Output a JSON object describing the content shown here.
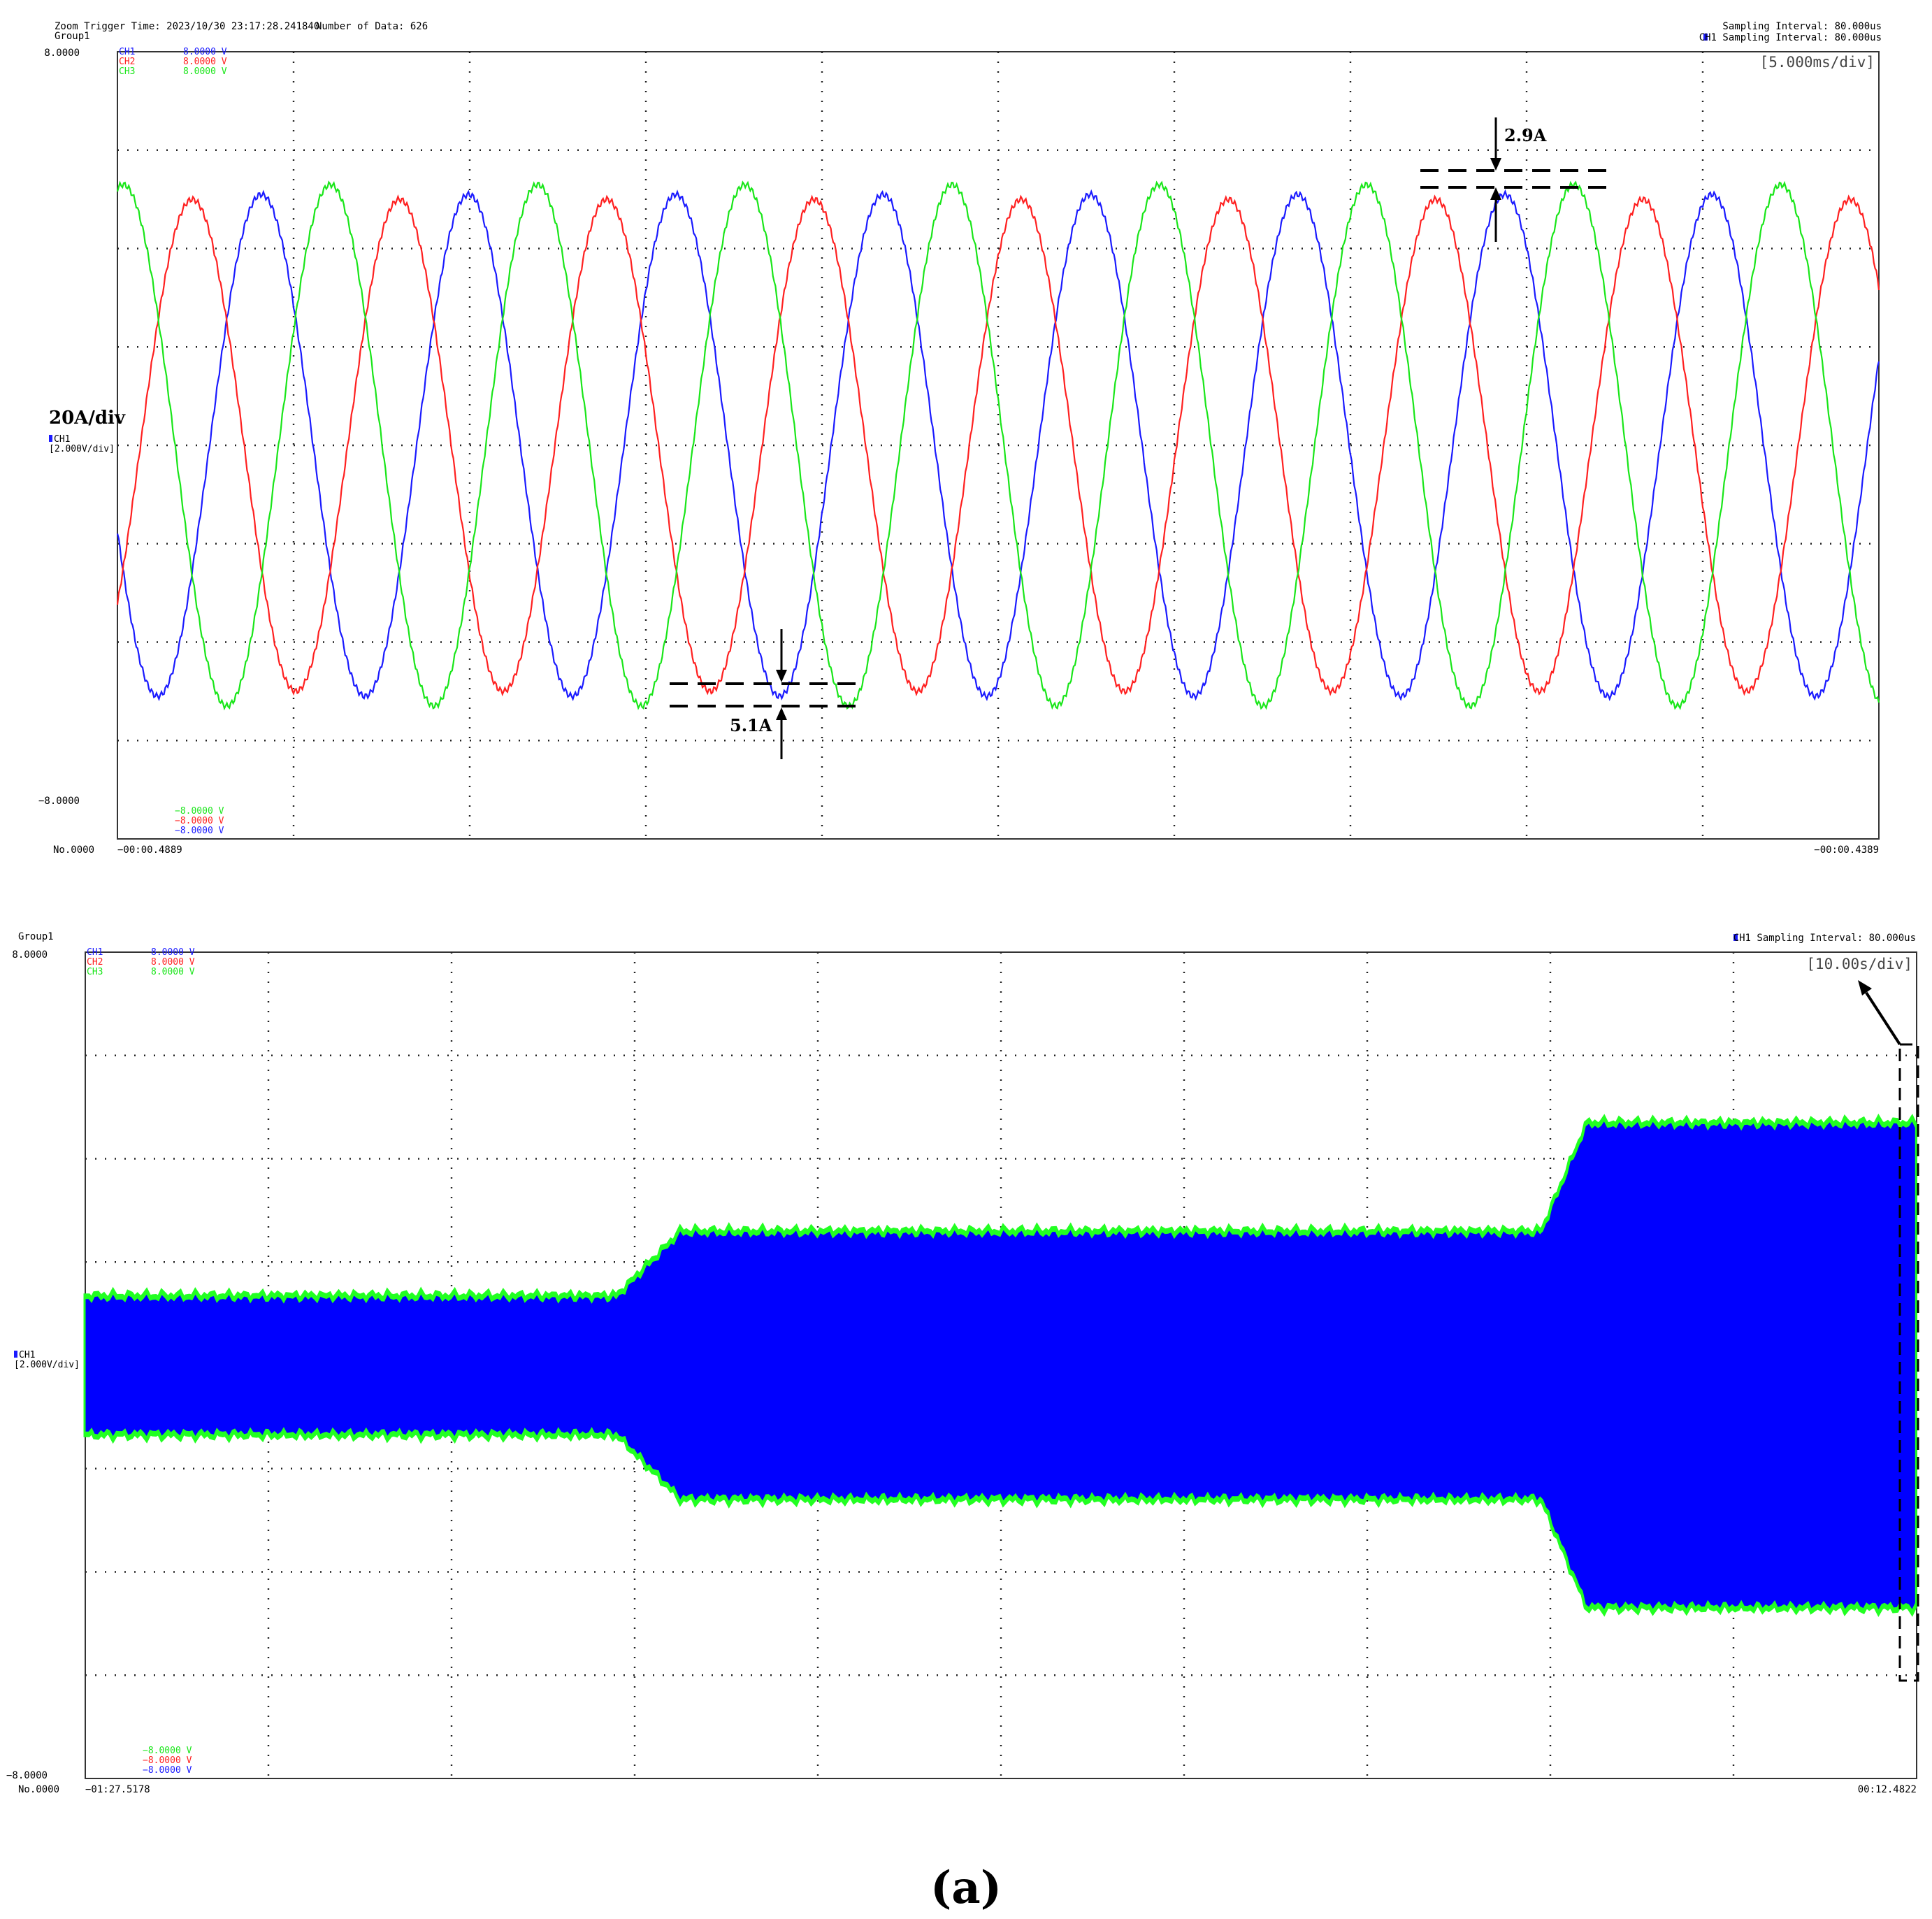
{
  "colors": {
    "ch1": "#1a1aff",
    "ch2": "#ff2020",
    "ch3": "#19e619",
    "fill_blue": "#0000ff",
    "fill_green": "#22ff22"
  },
  "chart_data": [
    {
      "type": "line",
      "header": {
        "zoom_trigger": "Zoom Trigger Time: 2023/10/30 23:17:28.241840",
        "number_of_data": "Number of Data: 626",
        "group": "Group1",
        "sampling_interval": "Sampling Interval:  80.000us",
        "ch1_sampling_interval": "CH1 Sampling Interval:  80.000us"
      },
      "time_div": "[5.000ms/div]",
      "y_top_label": "8.0000",
      "y_bottom_label": "−8.0000",
      "x_start_label": "−00:00.4889",
      "x_end_label": "−00:00.4389",
      "no_label": "No.0000",
      "scale_annotation": "20A/div",
      "ch_scale": {
        "name": "CH1",
        "value": "[2.000V/div]"
      },
      "top_legend": [
        {
          "name": "CH1",
          "value": "8.0000  V",
          "color": "#1a1aff"
        },
        {
          "name": "CH2",
          "value": "8.0000  V",
          "color": "#ff2020"
        },
        {
          "name": "CH3",
          "value": "8.0000  V",
          "color": "#19e619"
        }
      ],
      "bottom_legend": [
        {
          "value": "−8.0000  V",
          "color": "#19e619"
        },
        {
          "value": "−8.0000  V",
          "color": "#ff2020"
        },
        {
          "value": "−8.0000  V",
          "color": "#1a1aff"
        }
      ],
      "xlim": [
        0,
        50
      ],
      "ylim": [
        -8,
        8
      ],
      "x_unit": "ms",
      "series": [
        {
          "key": "ch1",
          "amplitude": 5.1,
          "frequency_hz": 170,
          "phase_deg": 200,
          "color": "#1a1aff"
        },
        {
          "key": "ch2",
          "amplitude": 5.0,
          "frequency_hz": 170,
          "phase_deg": 320,
          "color": "#ff2020"
        },
        {
          "key": "ch3",
          "amplitude": 5.3,
          "frequency_hz": 170,
          "phase_deg": 80,
          "color": "#19e619"
        }
      ],
      "annotations": [
        {
          "label": "2.9A"
        },
        {
          "label": "5.1A"
        }
      ]
    },
    {
      "type": "area",
      "header": {
        "group": "Group1",
        "ch1_sampling_interval": "CH1 Sampling Interval:  80.000us"
      },
      "time_div": "[10.00s/div]",
      "y_top_label": "8.0000",
      "y_bottom_label": "−8.0000",
      "x_start_label": "−01:27.5178",
      "x_end_label": "00:12.4822",
      "no_label": "No.0000",
      "ch_scale": {
        "name": "CH1",
        "value": "[2.000V/div]"
      },
      "top_legend": [
        {
          "name": "CH1",
          "value": "8.0000  V",
          "color": "#1a1aff"
        },
        {
          "name": "CH2",
          "value": "8.0000  V",
          "color": "#ff2020"
        },
        {
          "name": "CH3",
          "value": "8.0000  V",
          "color": "#19e619"
        }
      ],
      "bottom_legend": [
        {
          "value": "−8.0000  V",
          "color": "#19e619"
        },
        {
          "value": "−8.0000  V",
          "color": "#ff2020"
        },
        {
          "value": "−8.0000  V",
          "color": "#1a1aff"
        }
      ],
      "xlim": [
        -87.5178,
        12.4822
      ],
      "ylim": [
        -8,
        8
      ],
      "x_unit": "s",
      "envelope": [
        {
          "t": -87.5,
          "amplitude": 1.35
        },
        {
          "t": -58.5,
          "amplitude": 1.35
        },
        {
          "t": -55.0,
          "amplitude": 2.6
        },
        {
          "t": -35.0,
          "amplitude": 2.6
        },
        {
          "t": -8.0,
          "amplitude": 2.6
        },
        {
          "t": -5.5,
          "amplitude": 4.7
        },
        {
          "t": 12.4,
          "amplitude": 4.7
        }
      ]
    }
  ],
  "caption": "(a)"
}
